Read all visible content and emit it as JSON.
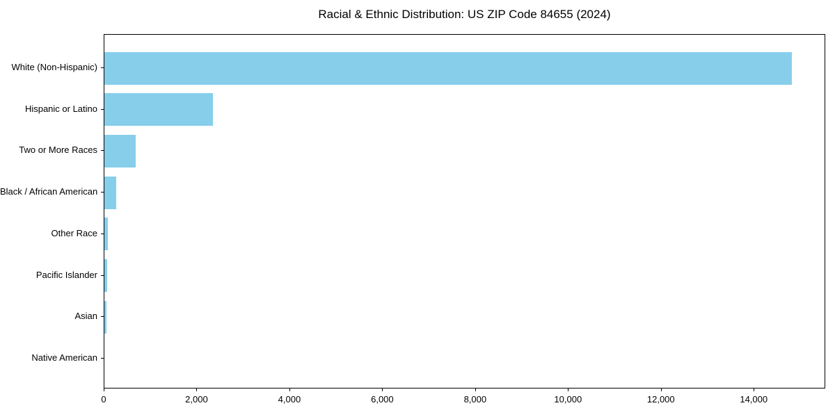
{
  "chart_data": {
    "type": "bar",
    "orientation": "horizontal",
    "title": "Racial & Ethnic Distribution: US ZIP Code 84655 (2024)",
    "categories": [
      "White (Non-Hispanic)",
      "Hispanic or Latino",
      "Two or More Races",
      "Black / African American",
      "Other Race",
      "Pacific Islander",
      "Asian",
      "Native American"
    ],
    "values": [
      14800,
      2340,
      675,
      250,
      75,
      55,
      50,
      0
    ],
    "bar_color": "#87CEEB",
    "xlim": [
      0,
      15540
    ],
    "xticks": {
      "values": [
        0,
        2000,
        4000,
        6000,
        8000,
        10000,
        12000,
        14000
      ],
      "labels": [
        "0",
        "2,000",
        "4,000",
        "6,000",
        "8,000",
        "10,000",
        "12,000",
        "14,000"
      ]
    },
    "xlabel": "",
    "ylabel": "",
    "grid": false,
    "legend": "none",
    "background_color": "#ffffff",
    "axis_color": "#000000",
    "text_color": "#000000"
  }
}
